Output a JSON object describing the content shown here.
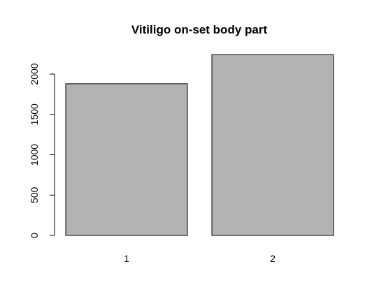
{
  "chart_data": {
    "type": "bar",
    "title": "Vitiligo on-set body part",
    "xlabel": "",
    "ylabel": "",
    "categories": [
      "1",
      "2"
    ],
    "values": [
      1880,
      2240
    ],
    "ylim": [
      0,
      2000
    ],
    "yticks": [
      0,
      500,
      1000,
      1500,
      2000
    ],
    "grid": false,
    "legend": "none",
    "bar_color": "#b3b3b3",
    "border_color": "#000000"
  }
}
